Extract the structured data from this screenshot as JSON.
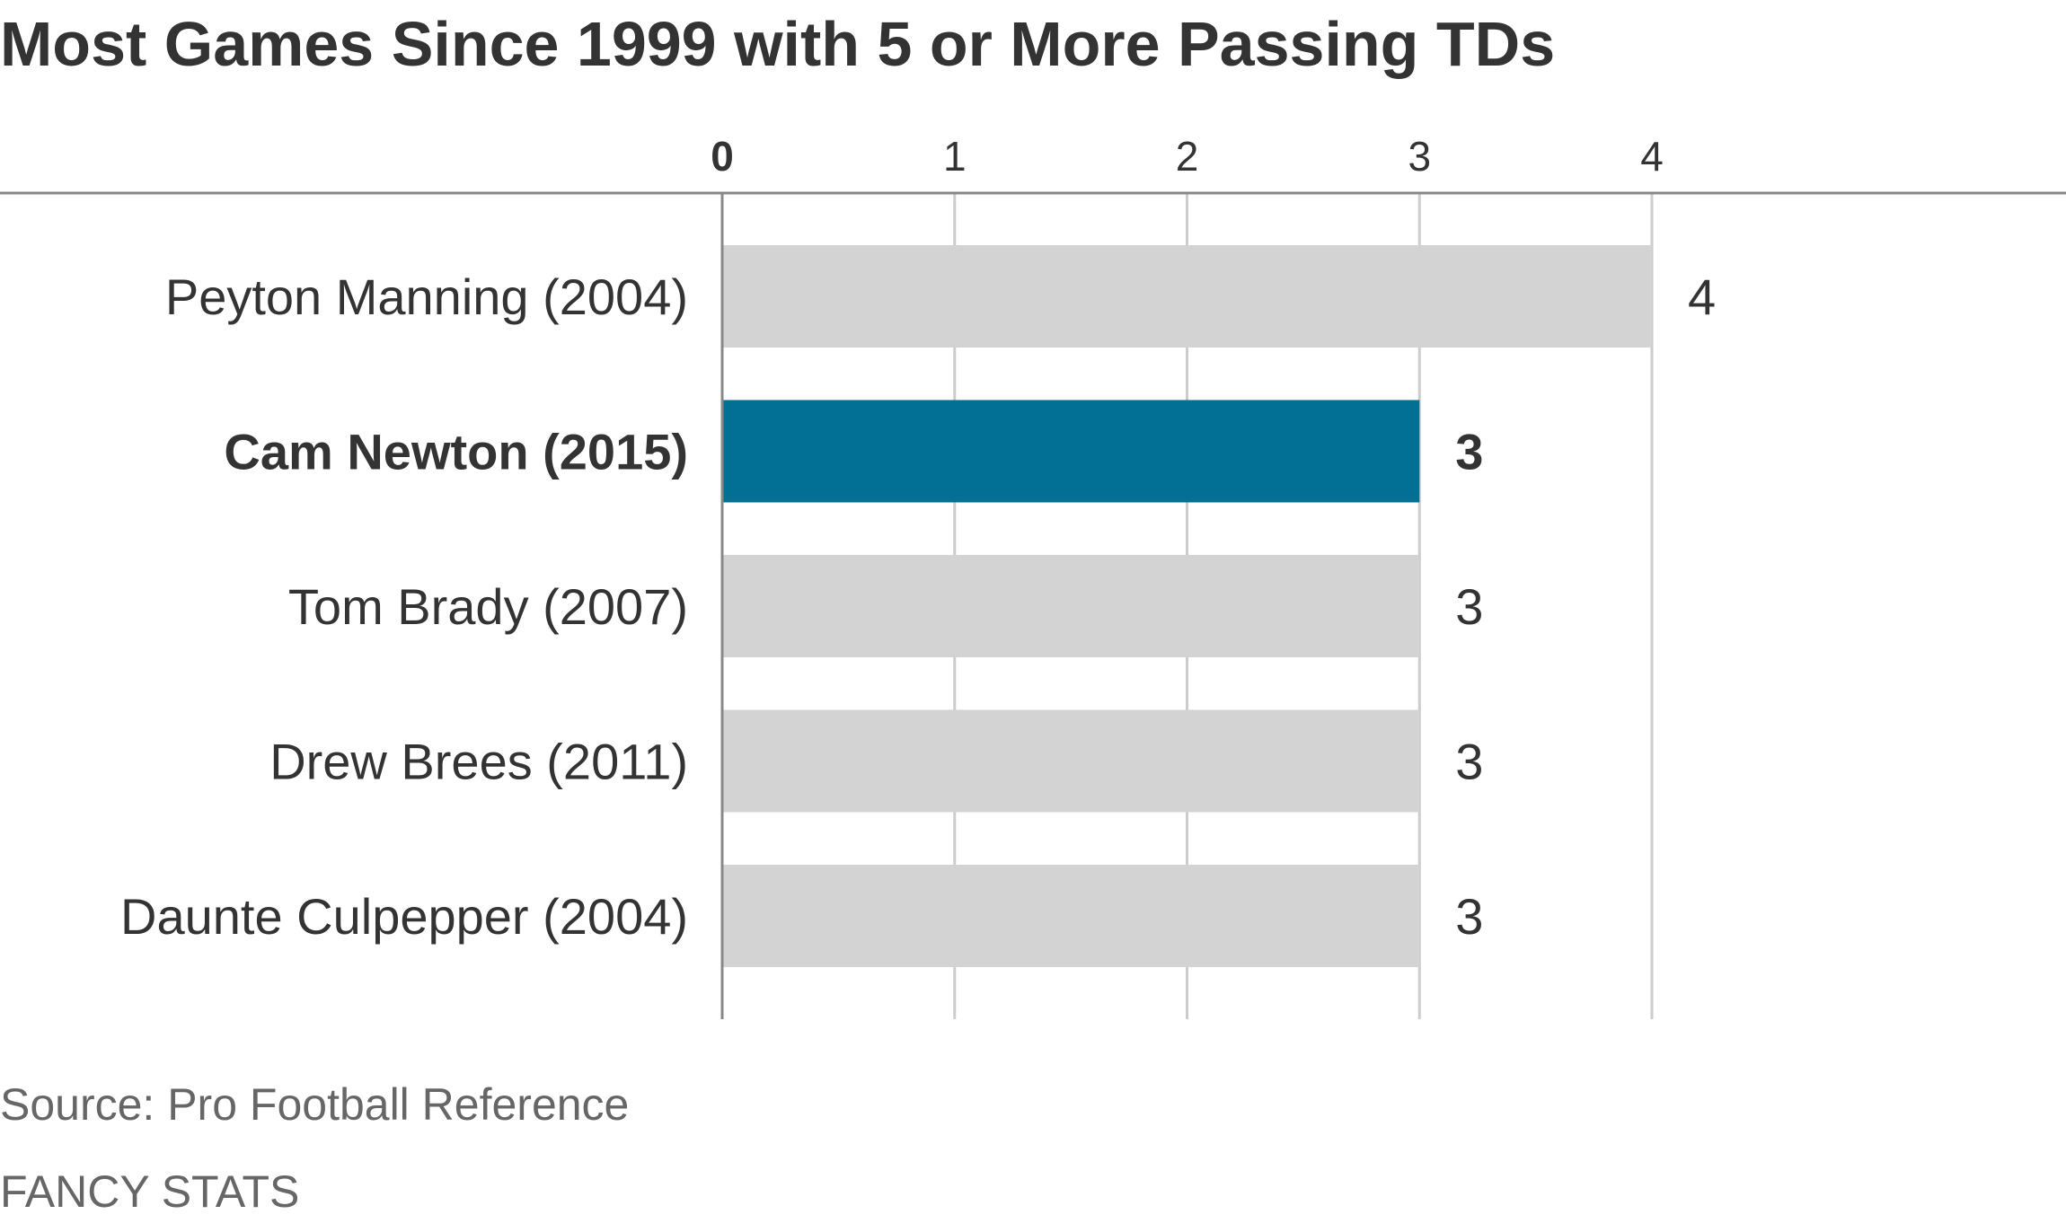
{
  "chart_data": {
    "type": "bar",
    "orientation": "horizontal",
    "title": "Most Games Since 1999 with 5 or More Passing TDs",
    "categories": [
      "Peyton Manning (2004)",
      "Cam Newton (2015)",
      "Tom Brady (2007)",
      "Drew Brees (2011)",
      "Daunte Culpepper (2004)"
    ],
    "values": [
      4,
      3,
      3,
      3,
      3
    ],
    "value_labels": [
      "4",
      "3",
      "3",
      "3",
      "3"
    ],
    "highlight_index": 1,
    "xticks": [
      "0",
      "1",
      "2",
      "3",
      "4"
    ],
    "xlim": [
      0,
      4
    ],
    "axis_position": "top",
    "grid": true,
    "legend": "none"
  },
  "colors": {
    "bar_default": "#d3d3d3",
    "bar_highlight": "#026f94",
    "gridline": "#cccccc",
    "axis": "#888888",
    "text": "#333333",
    "footer_text": "#666666"
  },
  "footer": {
    "source": "Source: Pro Football Reference",
    "credit": "FANCY STATS"
  }
}
